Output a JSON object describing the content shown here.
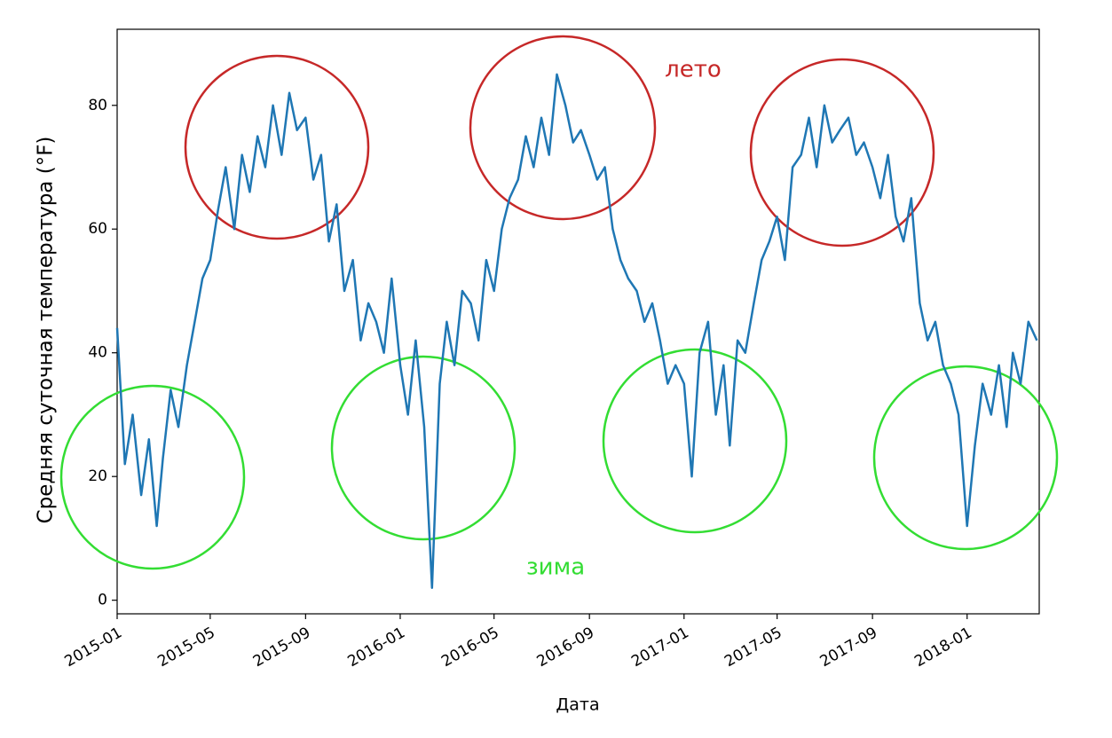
{
  "chart_data": {
    "type": "line",
    "xlabel": "Дата",
    "ylabel": "Средняя суточная температура (°F)",
    "annotations": [
      "лето",
      "зима"
    ],
    "annotation_colors": [
      "#c62828",
      "#33dd33"
    ],
    "x": [
      "2015-01-01",
      "2015-01-11",
      "2015-01-21",
      "2015-02-01",
      "2015-02-11",
      "2015-02-21",
      "2015-03-01",
      "2015-03-11",
      "2015-03-21",
      "2015-04-01",
      "2015-04-11",
      "2015-04-21",
      "2015-05-01",
      "2015-05-11",
      "2015-05-21",
      "2015-06-01",
      "2015-06-11",
      "2015-06-21",
      "2015-07-01",
      "2015-07-11",
      "2015-07-21",
      "2015-08-01",
      "2015-08-11",
      "2015-08-21",
      "2015-09-01",
      "2015-09-11",
      "2015-09-21",
      "2015-10-01",
      "2015-10-11",
      "2015-10-21",
      "2015-11-01",
      "2015-11-11",
      "2015-11-21",
      "2015-12-01",
      "2015-12-11",
      "2015-12-21",
      "2016-01-01",
      "2016-01-11",
      "2016-01-21",
      "2016-02-01",
      "2016-02-11",
      "2016-02-21",
      "2016-03-01",
      "2016-03-11",
      "2016-03-21",
      "2016-04-01",
      "2016-04-11",
      "2016-04-21",
      "2016-05-01",
      "2016-05-11",
      "2016-05-21",
      "2016-06-01",
      "2016-06-11",
      "2016-06-21",
      "2016-07-01",
      "2016-07-11",
      "2016-07-21",
      "2016-08-01",
      "2016-08-11",
      "2016-08-21",
      "2016-09-01",
      "2016-09-11",
      "2016-09-21",
      "2016-10-01",
      "2016-10-11",
      "2016-10-21",
      "2016-11-01",
      "2016-11-11",
      "2016-11-21",
      "2016-12-01",
      "2016-12-11",
      "2016-12-21",
      "2017-01-01",
      "2017-01-11",
      "2017-01-21",
      "2017-02-01",
      "2017-02-11",
      "2017-02-21",
      "2017-03-01",
      "2017-03-11",
      "2017-03-21",
      "2017-04-01",
      "2017-04-11",
      "2017-04-21",
      "2017-05-01",
      "2017-05-11",
      "2017-05-21",
      "2017-06-01",
      "2017-06-11",
      "2017-06-21",
      "2017-07-01",
      "2017-07-11",
      "2017-07-21",
      "2017-08-01",
      "2017-08-11",
      "2017-08-21",
      "2017-09-01",
      "2017-09-11",
      "2017-09-21",
      "2017-10-01",
      "2017-10-11",
      "2017-10-21",
      "2017-11-01",
      "2017-11-11",
      "2017-11-21",
      "2017-12-01",
      "2017-12-11",
      "2017-12-21",
      "2018-01-01",
      "2018-01-11",
      "2018-01-21",
      "2018-02-01",
      "2018-02-11",
      "2018-02-21",
      "2018-03-01",
      "2018-03-11",
      "2018-03-21",
      "2018-04-01"
    ],
    "series": [
      {
        "color": "#1f77b4",
        "values": [
          44,
          22,
          30,
          17,
          26,
          12,
          23,
          34,
          28,
          38,
          45,
          52,
          55,
          63,
          70,
          60,
          72,
          66,
          75,
          70,
          80,
          72,
          82,
          76,
          78,
          68,
          72,
          58,
          64,
          50,
          55,
          42,
          48,
          45,
          40,
          52,
          38,
          30,
          42,
          28,
          2,
          35,
          45,
          38,
          50,
          48,
          42,
          55,
          50,
          60,
          65,
          68,
          75,
          70,
          78,
          72,
          85,
          80,
          74,
          76,
          72,
          68,
          70,
          60,
          55,
          52,
          50,
          45,
          48,
          42,
          35,
          38,
          35,
          20,
          40,
          45,
          30,
          38,
          25,
          42,
          40,
          48,
          55,
          58,
          62,
          55,
          70,
          72,
          78,
          70,
          80,
          74,
          76,
          78,
          72,
          74,
          70,
          65,
          72,
          62,
          58,
          65,
          48,
          42,
          45,
          38,
          35,
          30,
          12,
          25,
          35,
          30,
          38,
          28,
          40,
          35,
          45,
          42
        ]
      }
    ],
    "xlim": [
      "2015-01-01",
      "2018-04-04"
    ],
    "xticks": [
      "2015-01",
      "2015-05",
      "2015-09",
      "2016-01",
      "2016-05",
      "2016-09",
      "2017-01",
      "2017-05",
      "2017-09",
      "2018-01"
    ],
    "ylim": [
      -2.2,
      92.3
    ],
    "yticks": [
      0,
      20,
      40,
      60,
      80
    ]
  }
}
